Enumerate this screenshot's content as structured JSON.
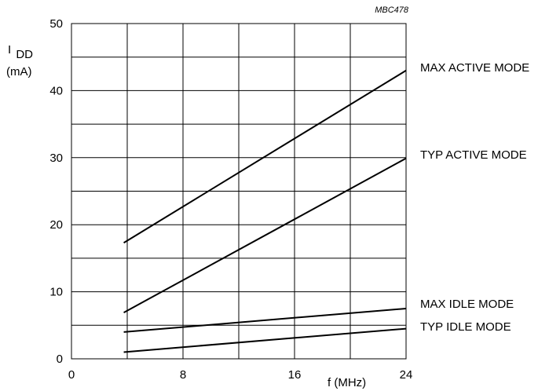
{
  "chart_data": {
    "type": "line",
    "reference_code": "MBC478",
    "ylabel_main": "I",
    "ylabel_sub": "DD",
    "yunit": "(mA)",
    "xlabel": "f (MHz)",
    "xlim": [
      0,
      24
    ],
    "ylim": [
      0,
      50
    ],
    "x_ticks": [
      0,
      8,
      16,
      24
    ],
    "y_ticks": [
      0,
      10,
      20,
      30,
      40,
      50
    ],
    "x_gridlines": [
      4,
      8,
      12,
      16,
      20
    ],
    "y_gridlines": [
      5,
      10,
      15,
      20,
      25,
      30,
      35,
      40,
      45
    ],
    "grid": true,
    "series": [
      {
        "name": "MAX ACTIVE MODE",
        "x": [
          3.75,
          24
        ],
        "y": [
          17.3,
          43.0
        ]
      },
      {
        "name": "TYP ACTIVE MODE",
        "x": [
          3.75,
          24
        ],
        "y": [
          6.9,
          29.9
        ]
      },
      {
        "name": "MAX IDLE MODE",
        "x": [
          3.75,
          24
        ],
        "y": [
          4.0,
          7.5
        ]
      },
      {
        "name": "TYP IDLE MODE",
        "x": [
          3.75,
          24
        ],
        "y": [
          1.0,
          4.5
        ]
      }
    ]
  }
}
